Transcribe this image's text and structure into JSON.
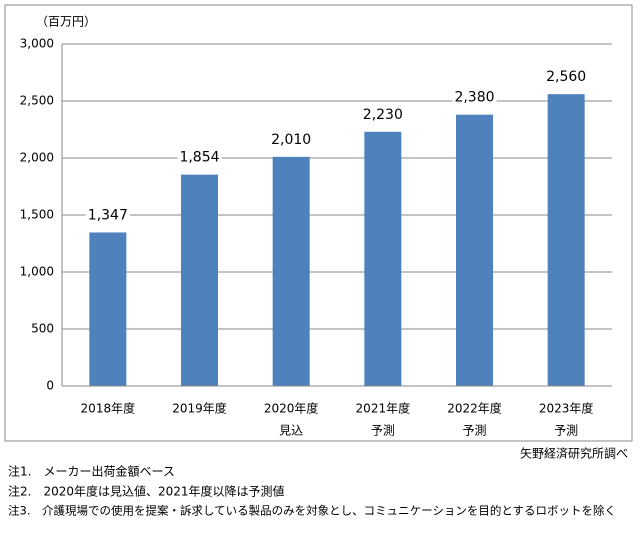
{
  "chart_data": {
    "type": "bar",
    "y_axis_label": "（百万円）",
    "categories": [
      [
        "2018年度"
      ],
      [
        "2019年度"
      ],
      [
        "2020年度",
        "見込"
      ],
      [
        "2021年度",
        "予測"
      ],
      [
        "2022年度",
        "予測"
      ],
      [
        "2023年度",
        "予測"
      ]
    ],
    "values": [
      1347,
      1854,
      2010,
      2230,
      2380,
      2560
    ],
    "value_labels": [
      "1,347",
      "1,854",
      "2,010",
      "2,230",
      "2,380",
      "2,560"
    ],
    "color": "#4f81bd",
    "ylim": [
      0,
      3000
    ],
    "yticks": [
      0,
      500,
      {
        "value": 1000,
        "label": "1,000"
      },
      {
        "value": 1500,
        "label": "1,500"
      },
      {
        "value": 2000,
        "label": "2,000"
      },
      {
        "value": 2500,
        "label": "2,500"
      },
      {
        "value": 3000,
        "label": "3,000"
      }
    ],
    "grid": true,
    "source": "矢野経済研究所調べ"
  },
  "notes": [
    "注1.　メーカー出荷金額ベース",
    "注2.　2020年度は見込値、2021年度以降は予測値",
    "注3.　介護現場での使用を提案・訴求している製品のみを対象とし、コミュニケーションを目的とするロボットを除く"
  ]
}
